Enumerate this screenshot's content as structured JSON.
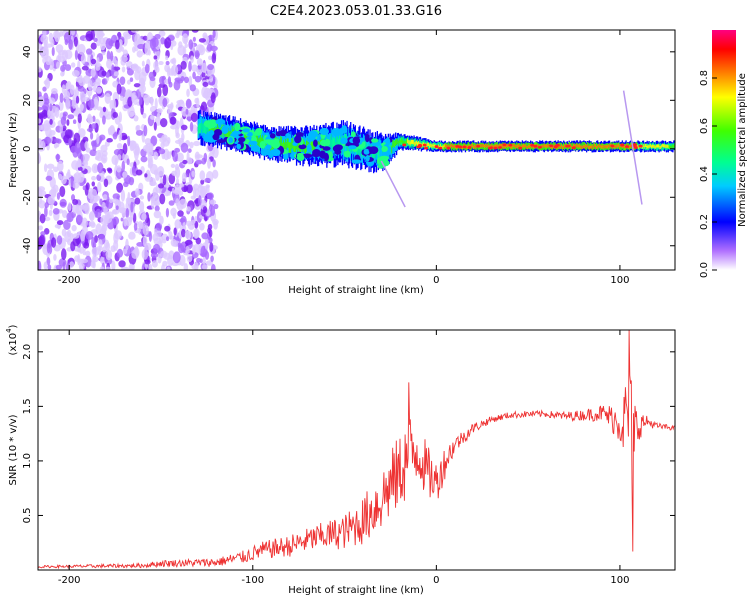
{
  "title": "C2E4.2023.053.01.33.G16",
  "chart_data": [
    {
      "type": "heatmap",
      "xlabel": "Height of straight line (km)",
      "ylabel": "Frequency (Hz)",
      "xlim": [
        -217,
        130
      ],
      "ylim": [
        -50,
        49
      ],
      "xticks": [
        -200,
        -100,
        0,
        100
      ],
      "yticks": [
        -40,
        -20,
        0,
        20,
        40
      ],
      "colorbar": {
        "label": "Normalized spectral amplitude",
        "range": [
          0,
          1
        ],
        "ticks": [
          "0.0",
          "0.2",
          "0.4",
          "0.6",
          "0.8"
        ]
      },
      "band": {
        "x": [
          -130,
          -110,
          -90,
          -70,
          -50,
          -30,
          -20,
          0,
          50,
          100,
          130
        ],
        "center_hz": [
          9,
          6,
          2,
          1,
          2,
          -2,
          3,
          1,
          1,
          1,
          1
        ],
        "half_width_hz": [
          6,
          6,
          6,
          7,
          8,
          7,
          3,
          2,
          2,
          2,
          2
        ],
        "max_amplitude": [
          0.45,
          0.55,
          0.5,
          0.5,
          0.45,
          0.35,
          0.6,
          0.8,
          0.9,
          0.9,
          0.6
        ]
      }
    },
    {
      "type": "line",
      "xlabel": "Height of straight line (km)",
      "ylabel": "SNR (10 * v/v)",
      "y_multiplier": "(x10",
      "y_multiplier_exp": "4",
      "xlim": [
        -217,
        130
      ],
      "ylim": [
        0,
        2.2
      ],
      "xticks": [
        -200,
        -100,
        0,
        100
      ],
      "yticks": [
        "0.5",
        "1.0",
        "1.5",
        "2.0"
      ],
      "series": [
        {
          "color": "#ee3333",
          "x": [
            -217,
            -160,
            -150,
            -120,
            -105,
            -95,
            -80,
            -65,
            -50,
            -40,
            -30,
            -20,
            -15,
            -10,
            -5,
            0,
            5,
            10,
            20,
            30,
            40,
            50,
            60,
            70,
            80,
            90,
            95,
            100,
            105,
            108,
            110,
            115,
            120,
            130
          ],
          "y": [
            0.03,
            0.04,
            0.06,
            0.07,
            0.12,
            0.18,
            0.22,
            0.3,
            0.35,
            0.45,
            0.65,
            0.9,
            1.05,
            1.1,
            0.9,
            0.8,
            1.0,
            1.15,
            1.3,
            1.38,
            1.42,
            1.43,
            1.43,
            1.41,
            1.42,
            1.44,
            1.4,
            1.35,
            1.4,
            1.1,
            1.33,
            1.36,
            1.32,
            1.3
          ],
          "spread": [
            0.01,
            0.02,
            0.03,
            0.04,
            0.06,
            0.08,
            0.1,
            0.12,
            0.16,
            0.22,
            0.3,
            0.35,
            0.4,
            0.3,
            0.25,
            0.2,
            0.15,
            0.08,
            0.05,
            0.03,
            0.03,
            0.03,
            0.03,
            0.04,
            0.05,
            0.08,
            0.12,
            0.2,
            0.5,
            0.6,
            0.15,
            0.05,
            0.03,
            0.02
          ],
          "peaks": [
            {
              "x": -15,
              "y": 1.72
            },
            {
              "x": 105,
              "y": 2.2
            },
            {
              "x": 107,
              "y": 0.17
            }
          ]
        }
      ]
    }
  ]
}
